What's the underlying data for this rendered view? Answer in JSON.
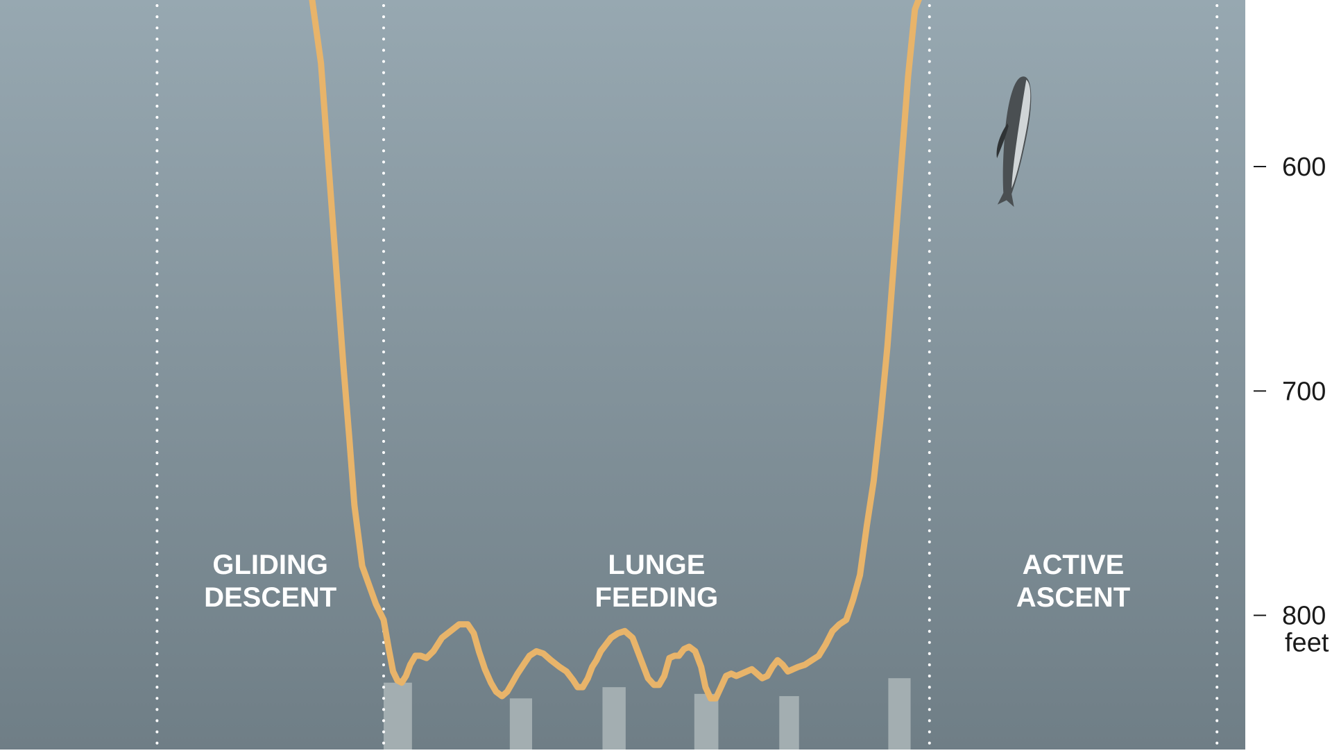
{
  "chart_data": {
    "type": "line",
    "title": "",
    "xlabel": "",
    "ylabel": "",
    "y_unit": "feet",
    "y_axis_side": "right",
    "y_inverted": true,
    "y_ticks": [
      600,
      700,
      800
    ],
    "ylim": [
      527,
      865
    ],
    "xlim": [
      0,
      1440
    ],
    "grid": false,
    "legend": "none",
    "colors": {
      "background_top": "#97a8b1",
      "background_bottom": "#6f7e86",
      "line": "#e8b46a",
      "divider": "#ffffff",
      "lunge_bar": "#a3aeb1",
      "axis_text": "#1a1a1a",
      "phase_text": "#ffffff",
      "whale": "#4a4f52"
    },
    "phases": [
      {
        "id": "gliding-descent",
        "lines": [
          "GLIDING",
          "DESCENT"
        ],
        "x_start": 183,
        "x_end": 447
      },
      {
        "id": "lunge-feeding",
        "lines": [
          "LUNGE",
          "FEEDING"
        ],
        "x_start": 447,
        "x_end": 1083
      },
      {
        "id": "active-ascent",
        "lines": [
          "ACTIVE",
          "ASCENT"
        ],
        "x_start": 1083,
        "x_end": 1418
      }
    ],
    "dividers_x": [
      183,
      447,
      1083,
      1418
    ],
    "lunge_markers": [
      {
        "x_start": 447,
        "x_end": 480,
        "depth_top": 830
      },
      {
        "x_start": 594,
        "x_end": 620,
        "depth_top": 837
      },
      {
        "x_start": 702,
        "x_end": 729,
        "depth_top": 832
      },
      {
        "x_start": 809,
        "x_end": 837,
        "depth_top": 835
      },
      {
        "x_start": 908,
        "x_end": 931,
        "depth_top": 836
      },
      {
        "x_start": 1035,
        "x_end": 1061,
        "depth_top": 828
      }
    ],
    "whale_icon": {
      "name": "whale-icon",
      "x": 1185,
      "depth": 580
    },
    "series": [
      {
        "x": [
          362,
          374,
          387,
          400,
          407,
          413,
          422,
          438,
          447,
          453,
          458,
          463,
          468,
          473,
          478,
          484,
          490,
          497,
          505,
          515,
          525,
          535,
          545,
          552,
          558,
          565,
          572,
          578,
          585,
          591,
          597,
          603,
          610,
          617,
          625,
          633,
          642,
          652,
          660,
          668,
          673,
          679,
          685,
          690,
          695,
          700,
          706,
          712,
          720,
          728,
          737,
          746,
          755,
          762,
          768,
          774,
          780,
          786,
          791,
          797,
          803,
          810,
          817,
          822,
          828,
          834,
          840,
          846,
          852,
          858,
          864,
          870,
          876,
          882,
          888,
          894,
          900,
          906,
          912,
          918,
          924,
          930,
          938,
          946,
          954,
          962,
          970,
          978,
          986,
          994,
          1002,
          1010,
          1018,
          1026,
          1034,
          1042,
          1050,
          1058,
          1066,
          1074,
          1081,
          1086,
          1095,
          1110,
          1122,
          1133,
          1143,
          1153,
          1163,
          1173,
          1183,
          1193,
          1203,
          1208
        ],
        "y": [
          521,
          554,
          621,
          688,
          721,
          751,
          778,
          795,
          802,
          815,
          825,
          829,
          830,
          827,
          822,
          818,
          818,
          819,
          816,
          810,
          807,
          804,
          804,
          808,
          816,
          824,
          830,
          834,
          836,
          834,
          830,
          826,
          822,
          818,
          816,
          817,
          820,
          823,
          825,
          829,
          832,
          832,
          828,
          823,
          820,
          816,
          813,
          810,
          808,
          807,
          810,
          819,
          828,
          831,
          831,
          827,
          819,
          818,
          818,
          815,
          814,
          816,
          823,
          832,
          837,
          837,
          832,
          827,
          826,
          827,
          826,
          825,
          824,
          826,
          828,
          827,
          823,
          820,
          822,
          825,
          824,
          823,
          822,
          820,
          818,
          813,
          807,
          804,
          802,
          793,
          782,
          760,
          740,
          712,
          680,
          640,
          600,
          560,
          530,
          522,
          521,
          521,
          521,
          521,
          521,
          521,
          521,
          521,
          521,
          521,
          521,
          521,
          521,
          521
        ],
        "name": ""
      }
    ]
  }
}
